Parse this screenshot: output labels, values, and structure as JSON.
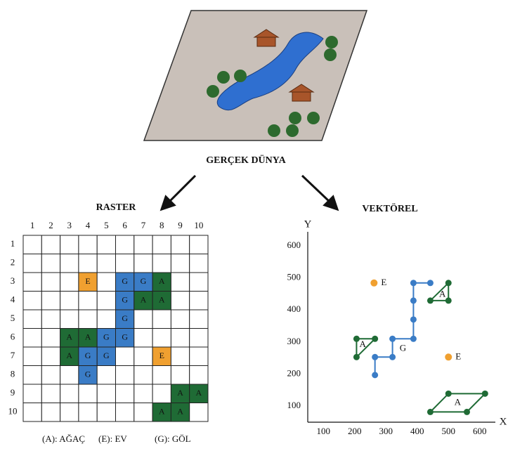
{
  "illustration_caption": "GERÇEK DÜNYA",
  "raster": {
    "title": "RASTER",
    "columns": [
      1,
      2,
      3,
      4,
      5,
      6,
      7,
      8,
      9,
      10
    ],
    "rows": [
      1,
      2,
      3,
      4,
      5,
      6,
      7,
      8,
      9,
      10
    ],
    "colors": {
      "A": "#1f6b35",
      "G": "#3a7cc6",
      "E": "#f0a030"
    },
    "cells": [
      [
        null,
        null,
        null,
        null,
        null,
        null,
        null,
        null,
        null,
        null
      ],
      [
        null,
        null,
        null,
        null,
        null,
        null,
        null,
        null,
        null,
        null
      ],
      [
        null,
        null,
        null,
        "E",
        null,
        "G",
        "G",
        "A",
        null,
        null
      ],
      [
        null,
        null,
        null,
        null,
        null,
        "G",
        "A",
        "A",
        null,
        null
      ],
      [
        null,
        null,
        null,
        null,
        null,
        "G",
        null,
        null,
        null,
        null
      ],
      [
        null,
        null,
        "A",
        "A",
        "G",
        "G",
        null,
        null,
        null,
        null
      ],
      [
        null,
        null,
        "A",
        "G",
        "G",
        null,
        null,
        "E",
        null,
        null
      ],
      [
        null,
        null,
        null,
        "G",
        null,
        null,
        null,
        null,
        null,
        null
      ],
      [
        null,
        null,
        null,
        null,
        null,
        null,
        null,
        null,
        "A",
        "A"
      ],
      [
        null,
        null,
        null,
        null,
        null,
        null,
        null,
        "A",
        "A",
        null
      ]
    ]
  },
  "vector": {
    "title": "VEKTÖREL",
    "x_label": "X",
    "y_label": "Y",
    "xlim": [
      50,
      650
    ],
    "ylim": [
      50,
      650
    ],
    "xticks": [
      100,
      200,
      300,
      400,
      500,
      600
    ],
    "yticks": [
      100,
      200,
      300,
      400,
      500,
      600
    ],
    "points": [
      {
        "label": "E",
        "color": "#f0a030",
        "x": 262,
        "y": 484
      },
      {
        "label": "E",
        "color": "#f0a030",
        "x": 500,
        "y": 253
      }
    ],
    "lines": [
      {
        "label": "G",
        "color": "#3a7cc6",
        "x": [
          265,
          265,
          321,
          321,
          388,
          388,
          388,
          388,
          442
        ],
        "y": [
          197,
          253,
          253,
          310,
          310,
          370,
          429,
          484,
          484
        ]
      }
    ],
    "polygons": [
      {
        "label": "A",
        "color": "#1f6b35",
        "x": [
          206,
          265,
          206
        ],
        "y": [
          310,
          310,
          253
        ]
      },
      {
        "label": "A",
        "color": "#1f6b35",
        "x": [
          442,
          500,
          500
        ],
        "y": [
          429,
          484,
          429
        ]
      },
      {
        "label": "A",
        "color": "#1f6b35",
        "x": [
          442,
          500,
          617,
          559
        ],
        "y": [
          82,
          139,
          139,
          82
        ]
      }
    ]
  },
  "legend": [
    "(A): AĞAÇ",
    "(E): EV",
    "(G): GÖL"
  ]
}
